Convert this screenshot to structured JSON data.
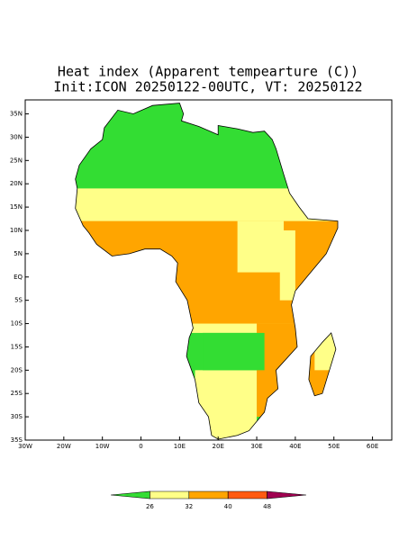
{
  "chart_data": {
    "type": "map",
    "title": "Heat index (Apparent tempearture (C))",
    "subtitle": "Init:ICON 20250122-00UTC, VT: 20250122",
    "xlim": [
      -30,
      65
    ],
    "ylim": [
      -35,
      38
    ],
    "xticks": [
      {
        "value": -30,
        "label": "30W"
      },
      {
        "value": -20,
        "label": "20W"
      },
      {
        "value": -10,
        "label": "10W"
      },
      0,
      {
        "value": 10,
        "label": "10E"
      },
      {
        "value": 20,
        "label": "20E"
      },
      {
        "value": 30,
        "label": "30E"
      },
      {
        "value": 40,
        "label": "40E"
      },
      {
        "value": 50,
        "label": "50E"
      },
      {
        "value": 60,
        "label": "60E"
      }
    ],
    "yticks": [
      {
        "value": 35,
        "label": "35N"
      },
      {
        "value": 30,
        "label": "30N"
      },
      {
        "value": 25,
        "label": "25N"
      },
      {
        "value": 20,
        "label": "20N"
      },
      {
        "value": 15,
        "label": "15N"
      },
      {
        "value": 10,
        "label": "10N"
      },
      {
        "value": 5,
        "label": "5N"
      },
      {
        "value": 0,
        "label": "EQ"
      },
      {
        "value": -5,
        "label": "5S"
      },
      {
        "value": -10,
        "label": "10S"
      },
      {
        "value": -15,
        "label": "15S"
      },
      {
        "value": -20,
        "label": "20S"
      },
      {
        "value": -25,
        "label": "25S"
      },
      {
        "value": -30,
        "label": "30S"
      },
      {
        "value": -35,
        "label": "35S"
      }
    ],
    "colorbar": {
      "levels": [
        26,
        32,
        40,
        48
      ],
      "colors": [
        "#33dd33",
        "#ffff88",
        "#ffa500",
        "#ff5a10",
        "#a00050"
      ]
    }
  }
}
